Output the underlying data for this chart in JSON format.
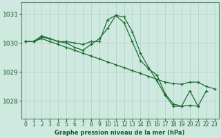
{
  "background_color": "#cfe8e0",
  "grid_color": "#b8d8cc",
  "line_color": "#1a6e2e",
  "marker_color": "#1a6e2e",
  "title": "Graphe pression niveau de la mer (hPa)",
  "ylim": [
    1027.4,
    1031.4
  ],
  "yticks": [
    1028,
    1029,
    1030,
    1031
  ],
  "xlim": [
    -0.5,
    23.5
  ],
  "xticks": [
    0,
    1,
    2,
    3,
    4,
    5,
    6,
    7,
    8,
    9,
    10,
    11,
    12,
    13,
    14,
    15,
    16,
    17,
    18,
    19,
    20,
    21,
    22,
    23
  ],
  "series": [
    {
      "x": [
        0,
        1,
        2,
        3,
        4,
        5,
        6,
        7,
        8,
        9,
        10,
        11,
        12,
        13,
        14,
        15,
        16,
        17,
        18,
        19,
        20,
        21,
        22
      ],
      "y": [
        1030.05,
        1030.05,
        1030.2,
        1030.15,
        1030.05,
        1030.05,
        1030.0,
        1029.95,
        1030.05,
        1030.05,
        1030.8,
        1030.95,
        1030.7,
        1030.05,
        1029.4,
        1029.1,
        1028.9,
        1028.25,
        1027.9,
        1027.82,
        1027.85,
        1027.82,
        1028.35
      ]
    },
    {
      "x": [
        0,
        1,
        2,
        3,
        4,
        5,
        6,
        7,
        8,
        9,
        10,
        11,
        12,
        13,
        14,
        15,
        16,
        17,
        18,
        19,
        20,
        21
      ],
      "y": [
        1030.05,
        1030.05,
        1030.25,
        1030.15,
        1030.05,
        1030.0,
        1029.85,
        1029.75,
        1029.95,
        1030.15,
        1030.5,
        1030.95,
        1030.9,
        1030.4,
        1029.65,
        1029.15,
        1028.7,
        1028.2,
        1027.82,
        1027.82,
        1028.35,
        1027.82
      ]
    },
    {
      "x": [
        0,
        1,
        2,
        3,
        4,
        5,
        6,
        7,
        8,
        9,
        10,
        11,
        12,
        13,
        14,
        15,
        16,
        17,
        18,
        19,
        20,
        21,
        22,
        23
      ],
      "y": [
        1030.05,
        1030.05,
        1030.15,
        1030.05,
        1029.95,
        1029.85,
        1029.75,
        1029.65,
        1029.55,
        1029.45,
        1029.35,
        1029.25,
        1029.15,
        1029.05,
        1028.95,
        1028.85,
        1028.75,
        1028.65,
        1028.6,
        1028.58,
        1028.65,
        1028.65,
        1028.5,
        1028.42
      ]
    }
  ]
}
